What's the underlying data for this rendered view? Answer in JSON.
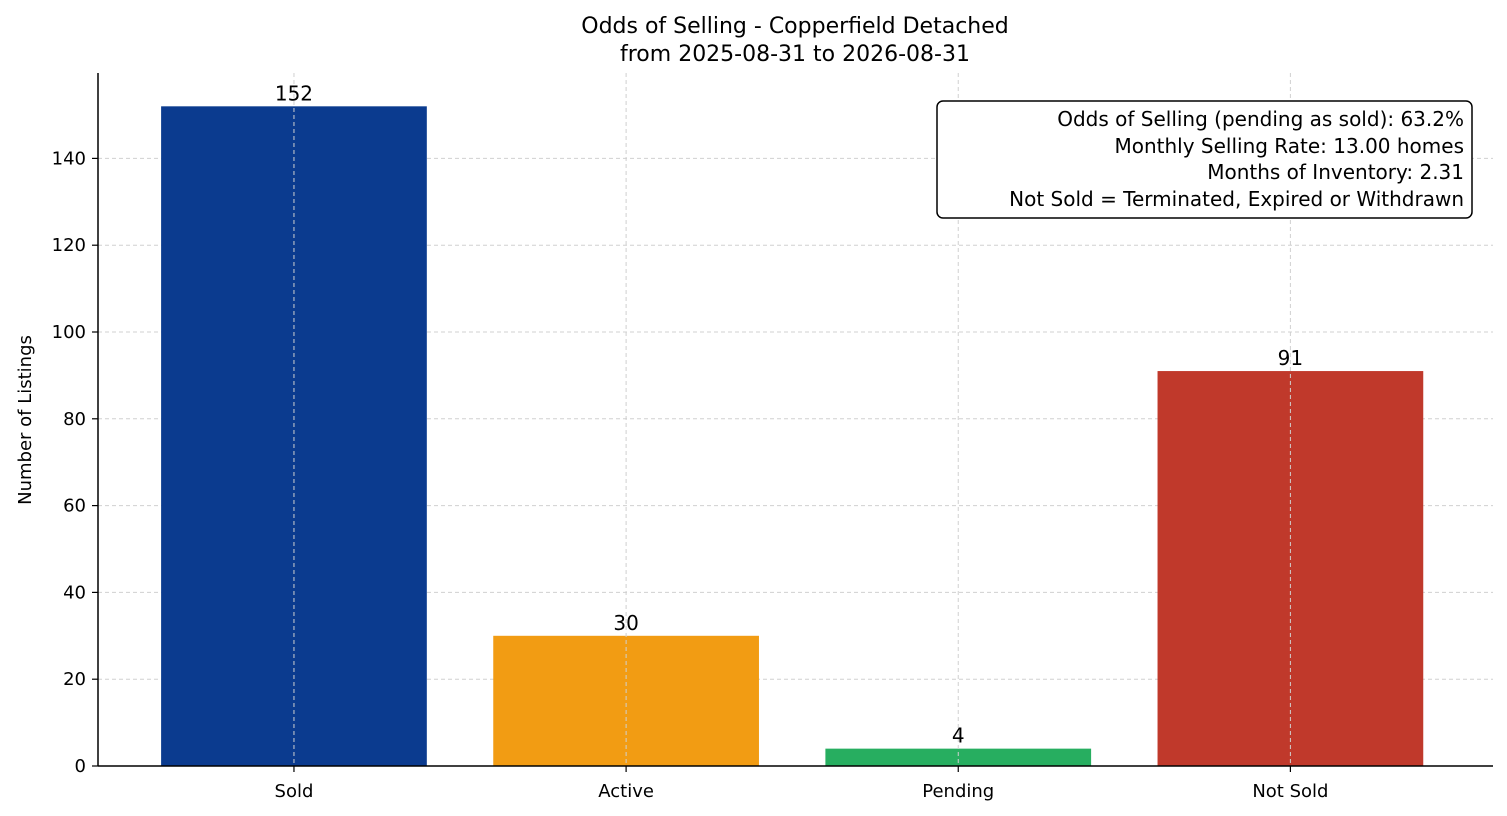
{
  "chart_data": {
    "type": "bar",
    "title": "Odds of Selling - Copperfield Detached",
    "subtitle": "from 2025-08-31 to 2026-08-31",
    "xlabel": "",
    "ylabel": "Number of Listings",
    "categories": [
      "Sold",
      "Active",
      "Pending",
      "Not Sold"
    ],
    "values": [
      152,
      30,
      4,
      91
    ],
    "colors": [
      "#0b3b8f",
      "#f29c13",
      "#27ae60",
      "#c0392b"
    ],
    "ylim": [
      0,
      160
    ],
    "yticks": [
      0,
      20,
      40,
      60,
      80,
      100,
      120,
      140
    ],
    "grid": true,
    "info_box": {
      "placement": "top-right",
      "lines": [
        "Odds of Selling (pending as sold): 63.2%",
        "Monthly Selling Rate: 13.00 homes",
        "Months of Inventory: 2.31",
        "Not Sold = Terminated, Expired or Withdrawn"
      ]
    }
  }
}
